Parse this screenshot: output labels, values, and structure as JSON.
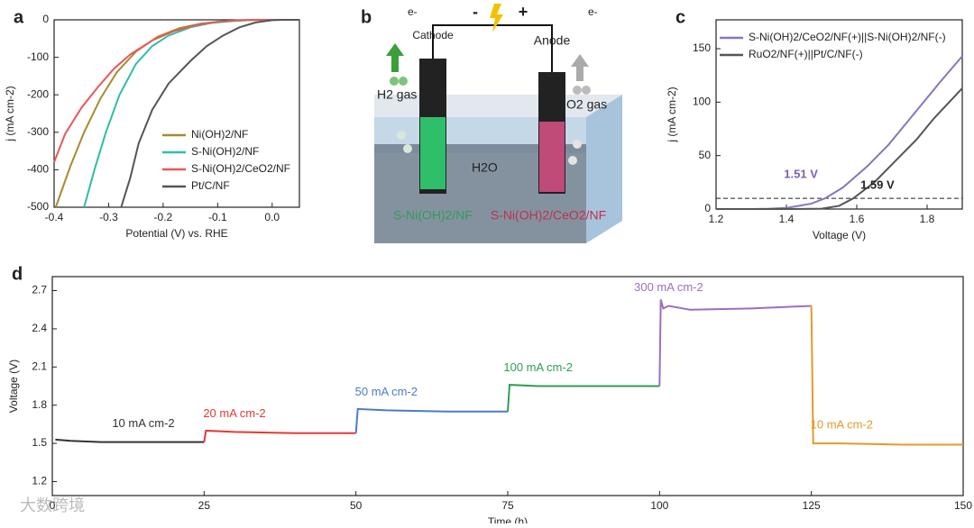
{
  "chart_data": [
    {
      "type": "line",
      "panel_label": "a",
      "x_label": "Potential (V) vs. RHE",
      "y_label": "j (mA cm-2)",
      "xlim": [
        -0.4,
        0.05
      ],
      "xticks": [
        -0.4,
        -0.3,
        -0.2,
        -0.1,
        {
          "value": 0,
          "label": "0.0"
        }
      ],
      "ylim": [
        -500,
        0
      ],
      "yticks": [
        0,
        -100,
        -200,
        -300,
        -400,
        -500
      ],
      "legend": "lower right",
      "series": [
        {
          "name": "Ni(OH)2/NF",
          "color": "#a88a2e",
          "x": [
            -0.397,
            -0.37,
            -0.345,
            -0.315,
            -0.285,
            -0.25,
            -0.21,
            -0.17,
            -0.13,
            -0.09,
            -0.05,
            0,
            0.05
          ],
          "values": [
            -500,
            -390,
            -300,
            -210,
            -140,
            -85,
            -45,
            -22,
            -10,
            -4,
            -1,
            0,
            0
          ]
        },
        {
          "name": "S-Ni(OH)2/NF",
          "color": "#2bbfa4",
          "x": [
            -0.345,
            -0.325,
            -0.305,
            -0.28,
            -0.25,
            -0.22,
            -0.19,
            -0.15,
            -0.11,
            -0.07,
            -0.03,
            0.05
          ],
          "values": [
            -500,
            -395,
            -300,
            -200,
            -118,
            -70,
            -42,
            -20,
            -8,
            -3,
            0,
            0
          ]
        },
        {
          "name": "S-Ni(OH)2/CeO2/NF",
          "color": "#e8585a",
          "x": [
            -0.4,
            -0.38,
            -0.35,
            -0.32,
            -0.29,
            -0.26,
            -0.22,
            -0.18,
            -0.14,
            -0.1,
            -0.06,
            -0.03,
            0.05
          ],
          "values": [
            -380,
            -305,
            -235,
            -180,
            -130,
            -92,
            -55,
            -30,
            -14,
            -5,
            -1,
            0,
            0
          ]
        },
        {
          "name": "Pt/C/NF",
          "color": "#555555",
          "x": [
            -0.277,
            -0.26,
            -0.245,
            -0.22,
            -0.19,
            -0.15,
            -0.12,
            -0.09,
            -0.06,
            -0.03,
            0,
            0.02,
            0.05
          ],
          "values": [
            -500,
            -420,
            -330,
            -240,
            -170,
            -110,
            -70,
            -42,
            -20,
            -7,
            -1,
            0,
            0
          ]
        }
      ]
    },
    {
      "type": "line",
      "panel_label": "c",
      "x_label": "Voltage (V)",
      "y_label": "j (mA cm-2)",
      "xlim": [
        1.2,
        1.9
      ],
      "xticks": [
        1.2,
        1.4,
        1.6,
        1.8
      ],
      "ylim": [
        0,
        177
      ],
      "yticks": [
        0,
        50,
        100,
        150
      ],
      "legend": "upper left",
      "hline": 10,
      "annotations": [
        {
          "text": "1.51 V",
          "x": 1.51,
          "y": 10,
          "color": "#7a5fb0"
        },
        {
          "text": "1.59 V",
          "x": 1.59,
          "y": 10,
          "color": "#222222"
        }
      ],
      "series": [
        {
          "name": "S-Ni(OH)2/CeO2/NF(+)||S-Ni(OH)2/NF(-)",
          "color": "#8a74c0",
          "x": [
            1.2,
            1.3,
            1.35,
            1.4,
            1.47,
            1.51,
            1.56,
            1.63,
            1.69,
            1.74,
            1.79,
            1.84,
            1.9
          ],
          "values": [
            0,
            0,
            0.3,
            1,
            5,
            10,
            20,
            40,
            60,
            80,
            100,
            120,
            143
          ]
        },
        {
          "name": "RuO2/NF(+)||Pt/C/NF(-)",
          "color": "#555555",
          "x": [
            1.2,
            1.4,
            1.5,
            1.55,
            1.59,
            1.65,
            1.71,
            1.77,
            1.82,
            1.9
          ],
          "values": [
            0,
            0,
            0.3,
            3,
            10,
            25,
            45,
            65,
            85,
            113
          ]
        }
      ]
    },
    {
      "type": "line",
      "panel_label": "d",
      "x_label": "Time (h)",
      "y_label": "Voltage (V)",
      "xlim": [
        0,
        150
      ],
      "xticks": [
        0,
        25,
        50,
        75,
        100,
        125,
        150
      ],
      "ylim": [
        1.09,
        2.81
      ],
      "yticks": [
        1.2,
        1.5,
        1.8,
        2.1,
        2.4,
        2.7
      ],
      "legend": "inline",
      "series": [
        {
          "name": "10 mA cm-2",
          "color": "#333333",
          "x": [
            0.5,
            3,
            8,
            15,
            20,
            25
          ],
          "values": [
            1.53,
            1.52,
            1.51,
            1.51,
            1.51,
            1.51
          ]
        },
        {
          "name": "20 mA cm-2",
          "color": "#e53935",
          "x": [
            25,
            25.3,
            30,
            40,
            50
          ],
          "values": [
            1.51,
            1.6,
            1.59,
            1.58,
            1.58
          ]
        },
        {
          "name": "50 mA cm-2",
          "color": "#4a7cc9",
          "x": [
            50,
            50.3,
            55,
            65,
            75
          ],
          "values": [
            1.58,
            1.77,
            1.76,
            1.75,
            1.75
          ]
        },
        {
          "name": "100 mA cm-2",
          "color": "#2e9e55",
          "x": [
            75,
            75.3,
            80,
            90,
            100
          ],
          "values": [
            1.75,
            1.96,
            1.95,
            1.95,
            1.95
          ]
        },
        {
          "name": "300 mA cm-2",
          "color": "#9b6fc0",
          "x": [
            100,
            100.2,
            100.6,
            101.5,
            105,
            115,
            125
          ],
          "values": [
            1.95,
            2.63,
            2.56,
            2.58,
            2.55,
            2.56,
            2.58
          ]
        },
        {
          "name": "10 mA cm-2",
          "color": "#e39a2a",
          "x": [
            125,
            125.3,
            130,
            140,
            150
          ],
          "values": [
            2.58,
            1.5,
            1.5,
            1.49,
            1.49
          ]
        }
      ]
    }
  ],
  "diagram": {
    "panel_label": "b",
    "electron_left": "e-",
    "cathode": "Cathode",
    "minus": "-",
    "plus": "+",
    "anode": "Anode",
    "electron_right": "e-",
    "h2": "H2 gas",
    "o2": "O2 gas",
    "water": "H2O",
    "cathode_material": "S-Ni(OH)2/NF",
    "anode_material": "S-Ni(OH)2/CeO2/NF"
  },
  "watermark": "大数跨境"
}
